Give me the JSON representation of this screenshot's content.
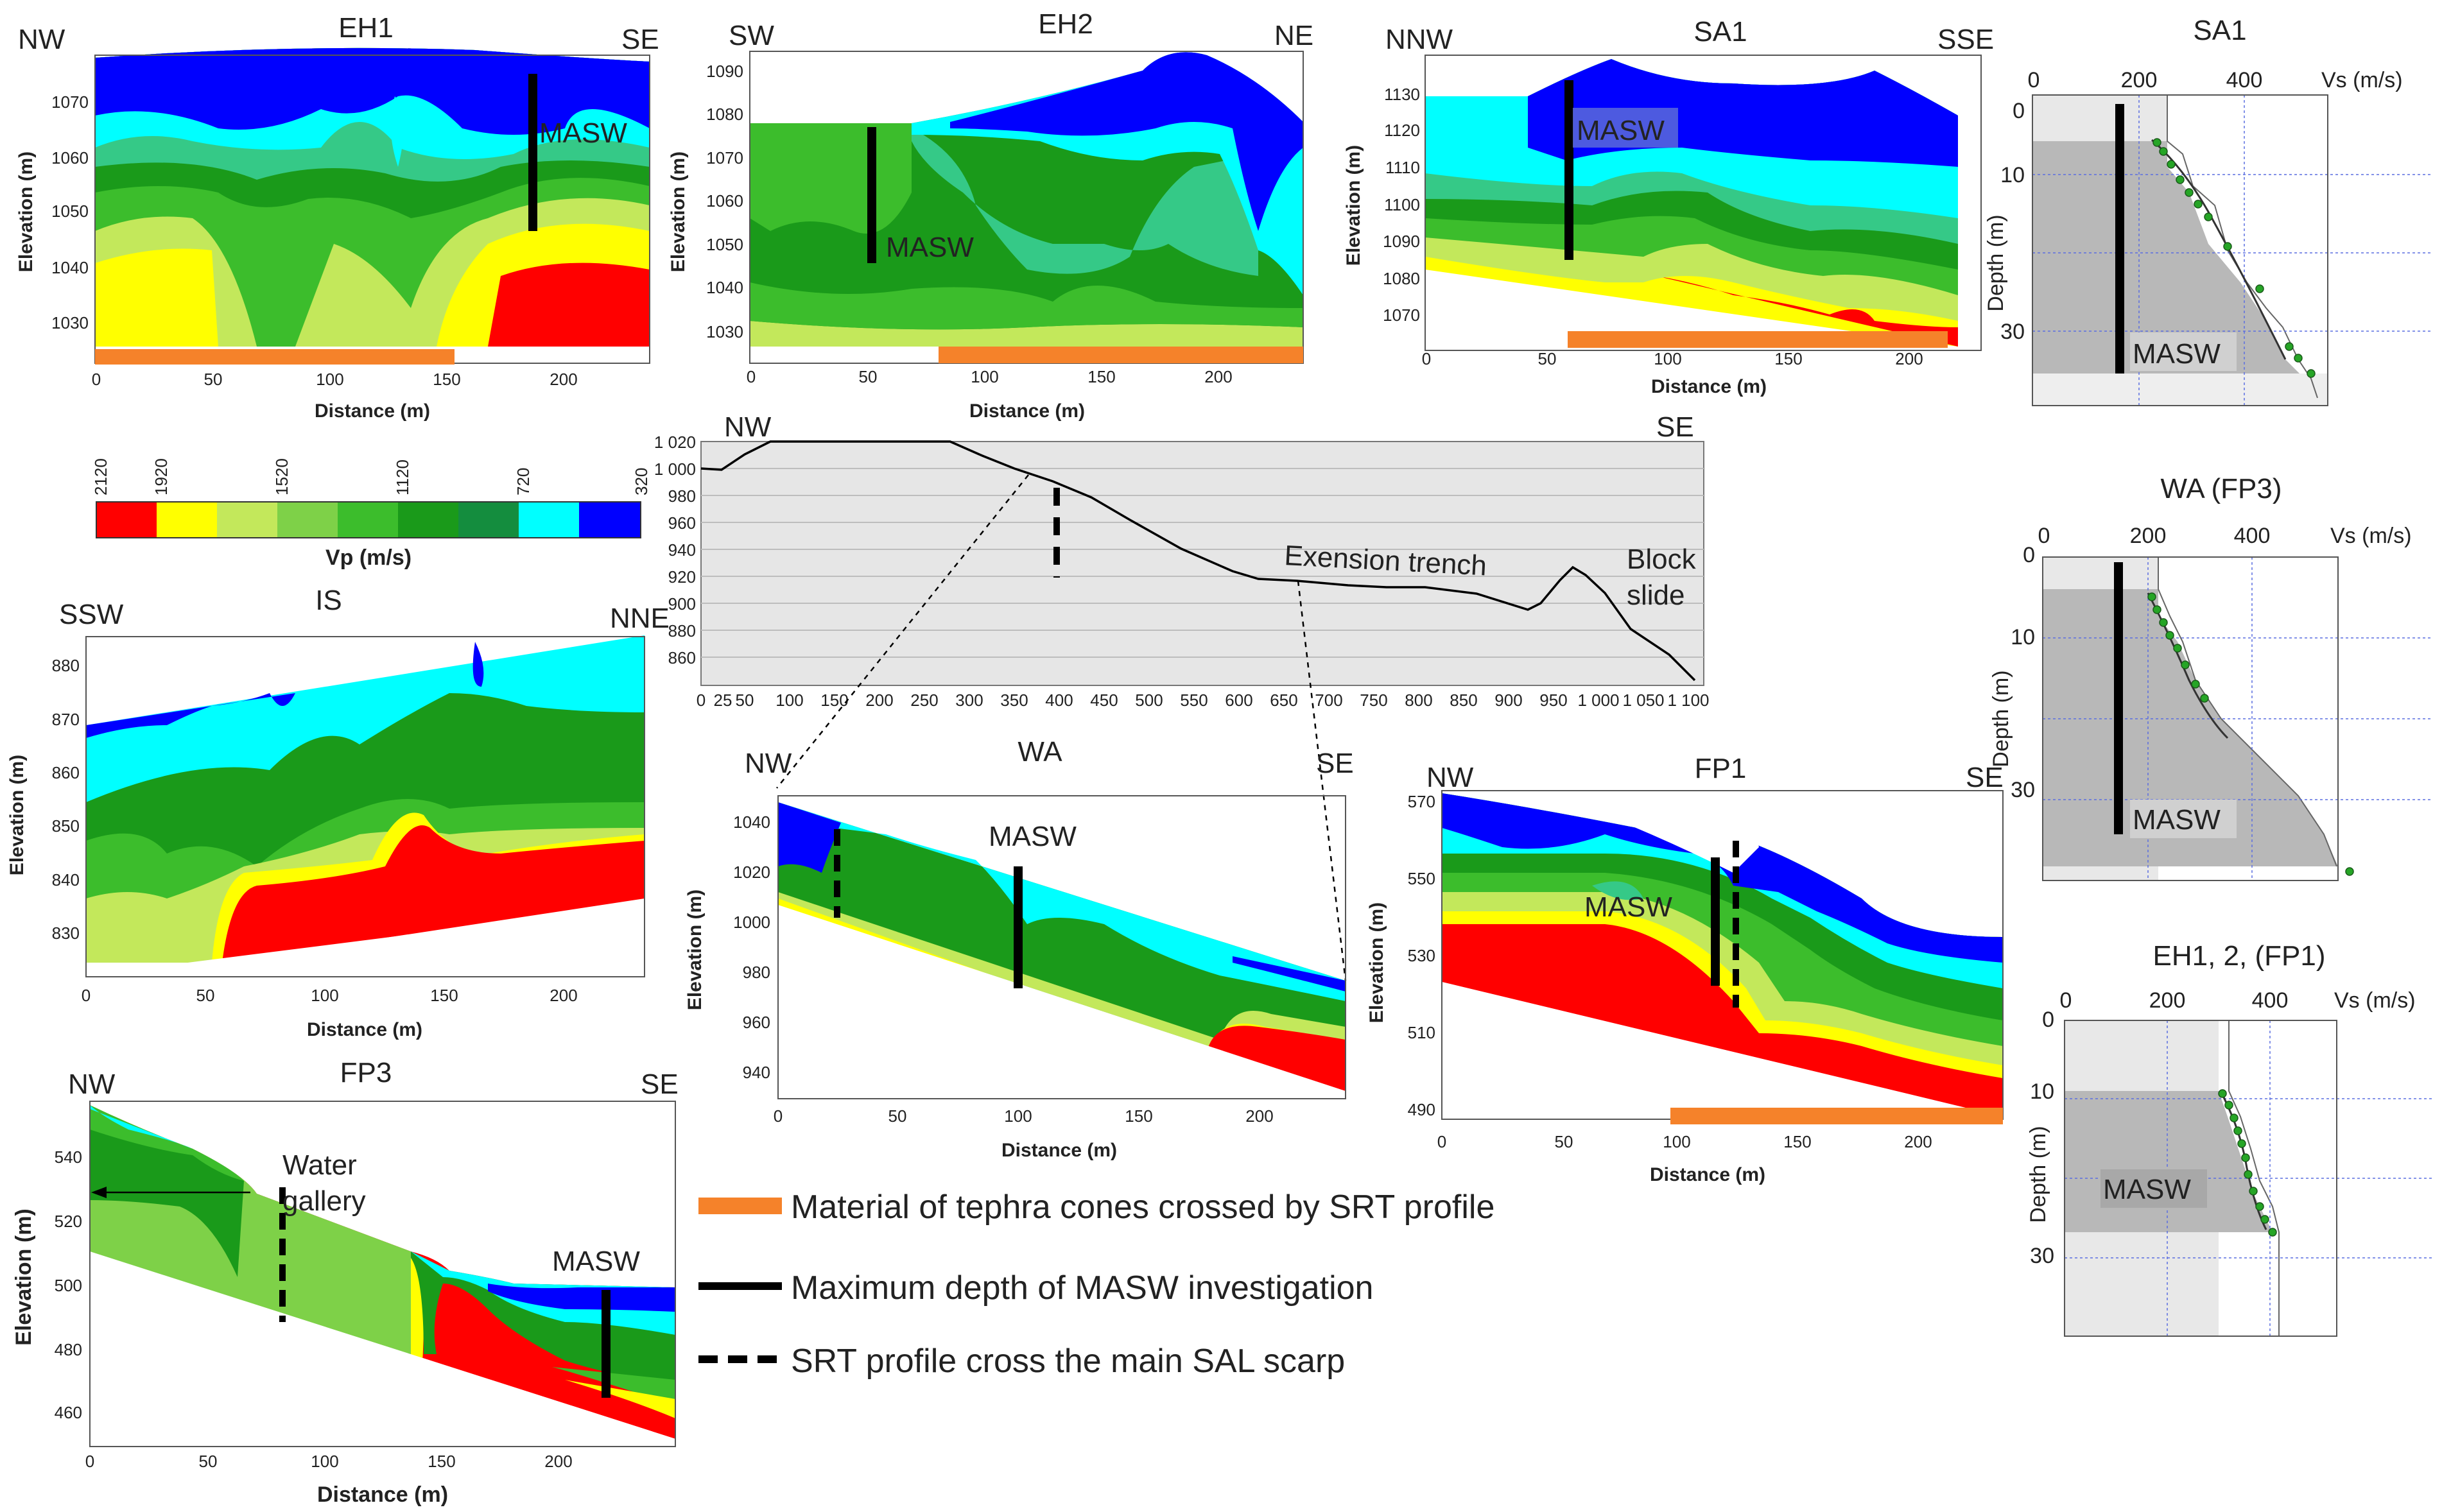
{
  "colors": {
    "c2120": "#ff0000",
    "c1920": "#ffff00",
    "c1720": "#c3e85b",
    "c1520": "#7ed148",
    "c1320": "#3cbd2c",
    "c1120": "#1a9a1a",
    "c920": "#148d3e",
    "c720": "#35c987",
    "c520": "#00ffff",
    "c320": "#0000ff",
    "tephra": "#f5822a"
  },
  "panels": {
    "eh1": {
      "title": "EH1",
      "left": "NW",
      "right": "SE",
      "ylabel": "Elevation (m)",
      "xlabel": "Distance (m)",
      "yticks": [
        "1070",
        "1060",
        "1050",
        "1040",
        "1030"
      ],
      "xticks": [
        "0",
        "50",
        "100",
        "150",
        "200"
      ],
      "masw": "MASW"
    },
    "eh2": {
      "title": "EH2",
      "left": "SW",
      "right": "NE",
      "ylabel": "Elevation (m)",
      "xlabel": "Distance (m)",
      "yticks": [
        "1090",
        "1080",
        "1070",
        "1060",
        "1050",
        "1040",
        "1030"
      ],
      "xticks": [
        "0",
        "50",
        "100",
        "150",
        "200"
      ],
      "masw": "MASW"
    },
    "sa1": {
      "title": "SA1",
      "left": "NNW",
      "right": "SSE",
      "ylabel": "Elevation (m)",
      "xlabel": "Distance (m)",
      "yticks": [
        "1130",
        "1120",
        "1110",
        "1100",
        "1090",
        "1080",
        "1070"
      ],
      "xticks": [
        "0",
        "50",
        "100",
        "150",
        "200"
      ],
      "masw": "MASW"
    },
    "is": {
      "title": "IS",
      "left": "SSW",
      "right": "NNE",
      "ylabel": "Elevation (m)",
      "xlabel": "Distance (m)",
      "yticks": [
        "880",
        "870",
        "860",
        "850",
        "840",
        "830"
      ],
      "xticks": [
        "0",
        "50",
        "100",
        "150",
        "200"
      ]
    },
    "wa": {
      "title": "WA",
      "left": "NW",
      "right": "SE",
      "ylabel": "Elevation (m)",
      "xlabel": "Distance (m)",
      "yticks": [
        "1040",
        "1020",
        "1000",
        "980",
        "960",
        "940"
      ],
      "xticks": [
        "0",
        "50",
        "100",
        "150",
        "200"
      ],
      "masw": "MASW"
    },
    "fp1": {
      "title": "FP1",
      "left": "NW",
      "right": "SE",
      "ylabel": "Elevation (m)",
      "xlabel": "Distance (m)",
      "yticks": [
        "570",
        "550",
        "530",
        "510",
        "490"
      ],
      "xticks": [
        "0",
        "50",
        "100",
        "150",
        "200"
      ],
      "masw": "MASW"
    },
    "fp3": {
      "title": "FP3",
      "left": "NW",
      "right": "SE",
      "ylabel": "Elevation (m)",
      "xlabel": "Distance (m)",
      "yticks": [
        "540",
        "520",
        "500",
        "480",
        "460"
      ],
      "xticks": [
        "0",
        "50",
        "100",
        "150",
        "200"
      ],
      "masw": "MASW",
      "gallery": "Water gallery",
      "gallery1": "Water",
      "gallery2": "gallery"
    }
  },
  "colorbar": {
    "label": "Vp (m/s)",
    "ticks": [
      "2120",
      "1920",
      "1520",
      "1120",
      "720",
      "320"
    ]
  },
  "profile": {
    "left": "NW",
    "right": "SE",
    "yticks": [
      "1 020",
      "1 000",
      "980",
      "960",
      "940",
      "920",
      "900",
      "880",
      "860"
    ],
    "xticks": [
      "0",
      "25",
      "50",
      "100",
      "150",
      "200",
      "250",
      "300",
      "350",
      "400",
      "450",
      "500",
      "550",
      "600",
      "650",
      "700",
      "750",
      "800",
      "850",
      "900",
      "950",
      "1 000",
      "1 050",
      "1 100"
    ],
    "trench": "Exension  trench",
    "block1": "Block",
    "block2": "slide"
  },
  "vs_profiles": {
    "xlabel": "Vs (m/s)",
    "ylabel": "Depth (m)",
    "masw": "MASW",
    "sa1": {
      "title": "SA1",
      "xticks": [
        "0",
        "200",
        "400"
      ],
      "yticks": [
        "0",
        "10",
        "30"
      ]
    },
    "wa": {
      "title": "WA (FP3)",
      "xticks": [
        "0",
        "200",
        "400"
      ],
      "yticks": [
        "0",
        "10",
        "30"
      ]
    },
    "eh": {
      "title": "EH1, 2, (FP1)",
      "xticks": [
        "0",
        "200",
        "400"
      ],
      "yticks": [
        "0",
        "10",
        "30"
      ]
    }
  },
  "legend": {
    "tephra": "Material of tephra cones crossed by SRT profile",
    "masw": "Maximum  depth of MASW investigation",
    "scarp": "SRT profile cross the main SAL scarp"
  }
}
